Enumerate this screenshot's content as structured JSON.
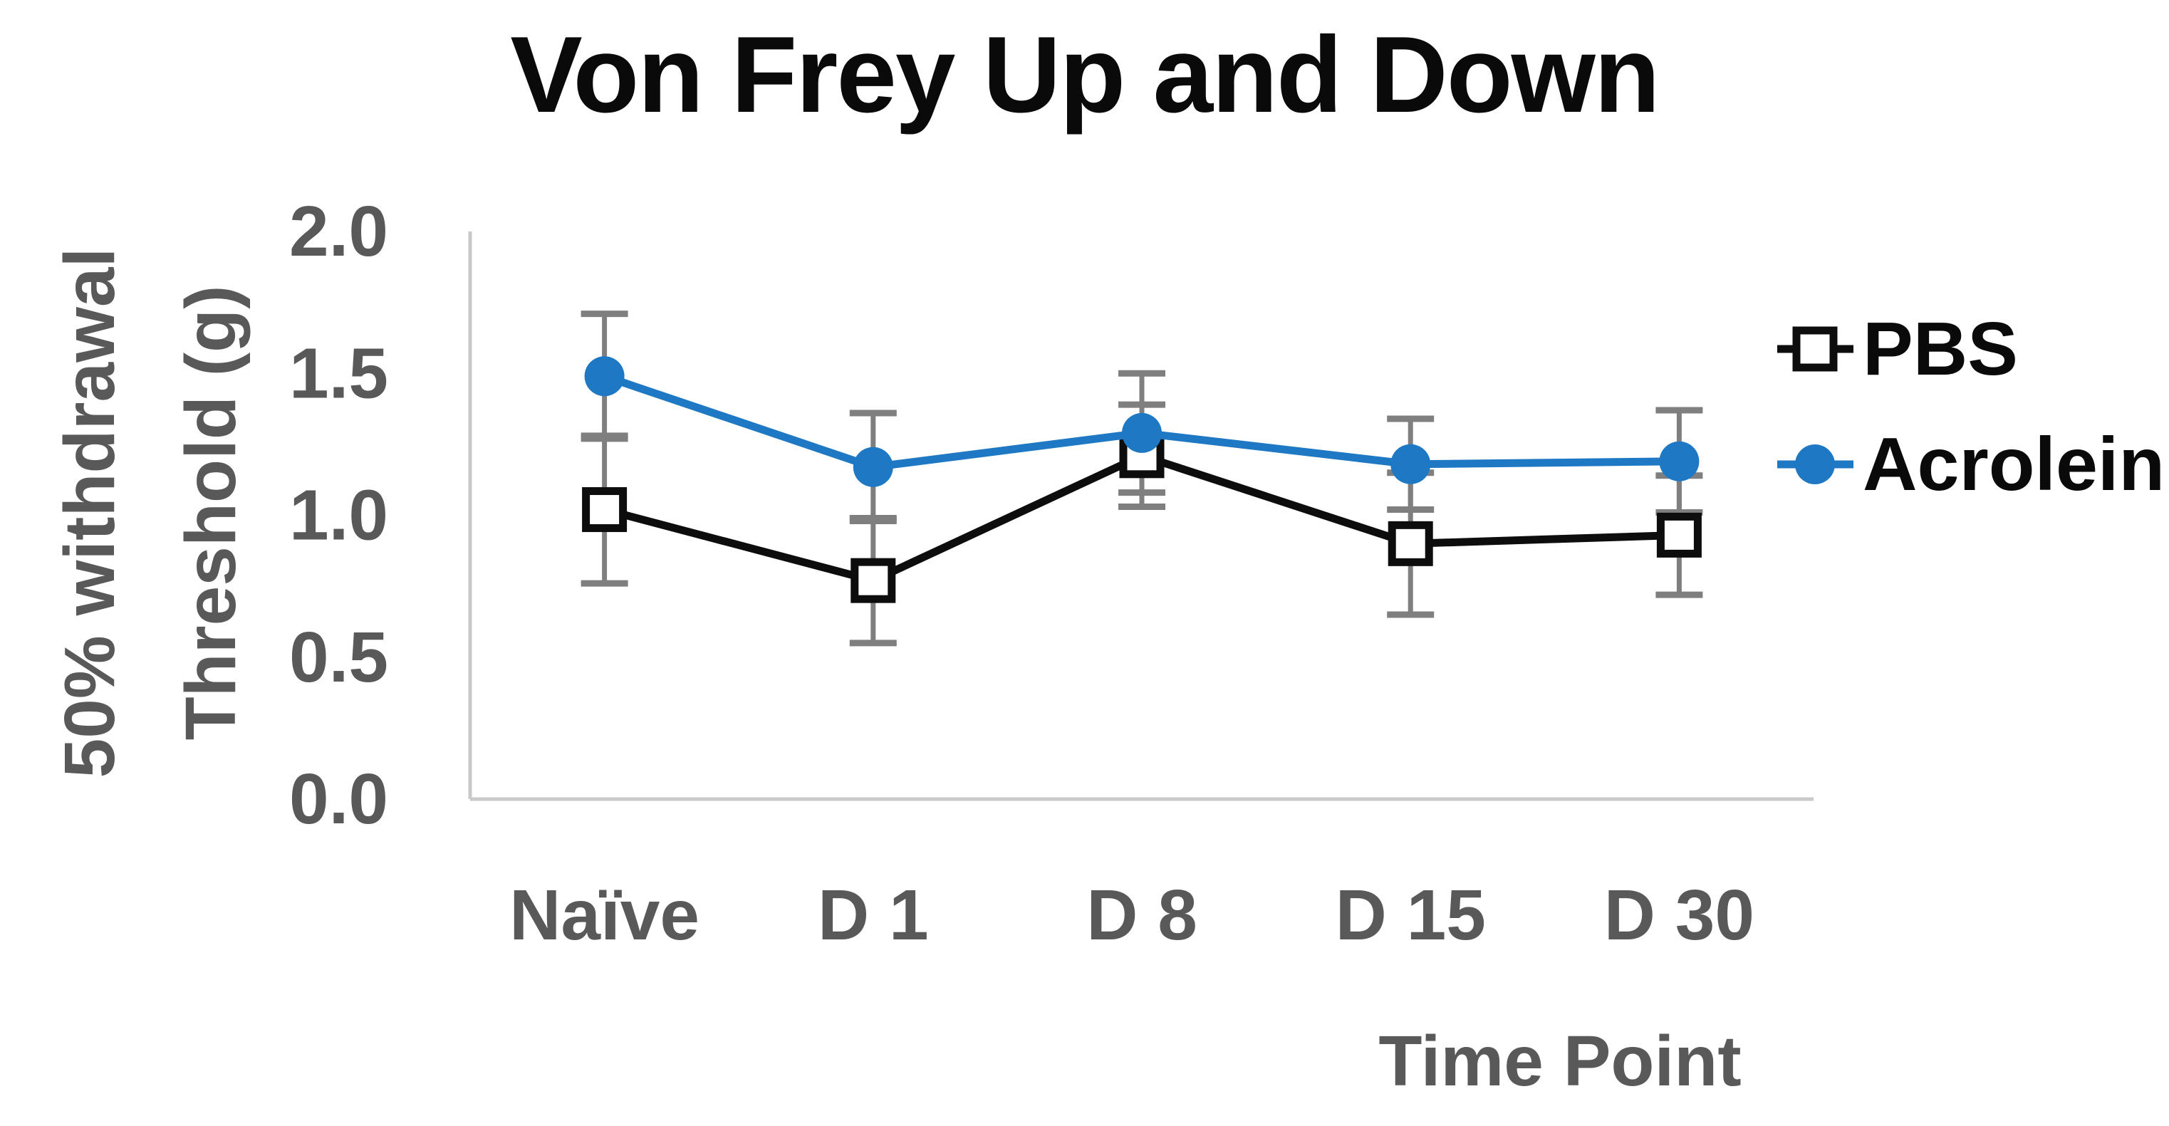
{
  "title": "Von Frey Up and Down",
  "chart_data": {
    "type": "line",
    "title": "Von Frey Up and Down",
    "categories": [
      "Naïve",
      "D 1",
      "D 8",
      "D 15",
      "D 30"
    ],
    "xlabel": "Time Point",
    "ylabel": "50% withdrawal Threshold (g)",
    "ylabel_lines": [
      "50% withdrawal",
      "Threshold (g)"
    ],
    "ylim": [
      0.0,
      2.0
    ],
    "yticks": [
      2.0,
      1.5,
      1.0,
      0.5,
      0.0
    ],
    "ytick_labels": [
      "2.0",
      "1.5",
      "1.0",
      "0.5",
      "0.0"
    ],
    "grid": false,
    "legend_position": "right",
    "series": [
      {
        "name": "PBS",
        "color": "#0d0d0d",
        "marker": "square-open",
        "values": [
          1.02,
          0.77,
          1.21,
          0.9,
          0.93
        ],
        "errors": [
          0.26,
          0.22,
          0.18,
          0.25,
          0.21
        ]
      },
      {
        "name": "Acrolein",
        "color": "#1f78c4",
        "marker": "circle-filled",
        "values": [
          1.49,
          1.17,
          1.29,
          1.18,
          1.19
        ],
        "errors": [
          0.22,
          0.19,
          0.21,
          0.16,
          0.18
        ]
      }
    ],
    "error_bar_color": "#7f7f7f",
    "axis_color": "#c9c9c9",
    "label_color": "#595959",
    "legend_text_color": "#0a0a0a"
  }
}
